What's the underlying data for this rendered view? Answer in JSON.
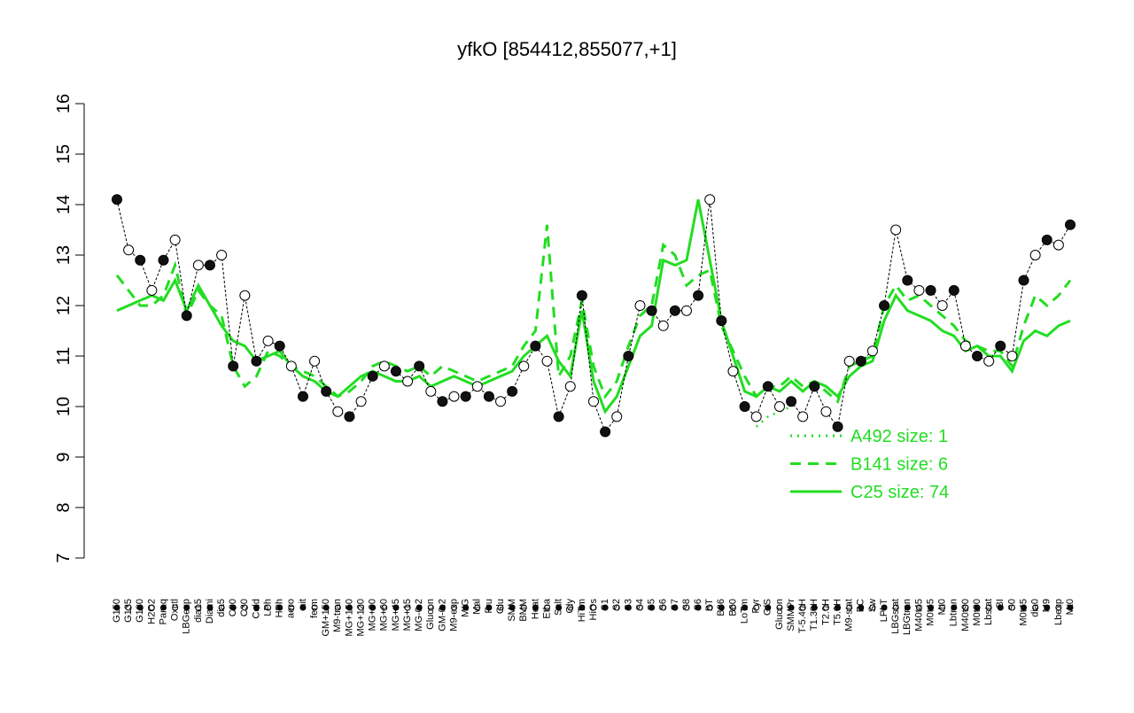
{
  "chart_data": {
    "type": "line",
    "title": "yfkO [854412,855077,+1]",
    "categories": [
      "G150",
      "G135",
      "G180",
      "H2O2",
      "Paraq",
      "Oxctl",
      "LBGexp",
      "dia15",
      "Diami",
      "dia5",
      "C90",
      "C30",
      "Cold",
      "LPh",
      "HPh",
      "aero",
      "nit",
      "ferm",
      "GM+150",
      "M9-tran",
      "MG+150",
      "MG+120",
      "MG+90",
      "MG+60",
      "MG+45",
      "MG+15",
      "MG-0.2",
      "Glucon",
      "GM-0.2",
      "M9-exp",
      "M/G",
      "Mal",
      "Fru",
      "Glu",
      "SMM",
      "BMM",
      "Heat",
      "Etha",
      "Salt",
      "Gly",
      "HiTm",
      "HiOs",
      "S1",
      "S2",
      "S3",
      "S4",
      "S5",
      "S6",
      "S7",
      "S8",
      "S6",
      "BT",
      "B36",
      "B60",
      "LoTm",
      "Pyr",
      "G/S",
      "Glucon",
      "SMMPr",
      "T-5.40H",
      "T1.30H",
      "T2.0H",
      "T5.0H",
      "M9-stat",
      "BC",
      "Sw",
      "LPhT",
      "LBGstat",
      "LBGtran",
      "M40t45",
      "M0t45",
      "Mt0",
      "Lbtran",
      "M40t90",
      "M0t90",
      "Lbstat",
      "BI",
      "S0",
      "M0t45",
      "dia0",
      "M9",
      "Lbexp",
      "Mt0"
    ],
    "values": [
      14.1,
      13.1,
      12.9,
      12.3,
      12.9,
      13.3,
      11.8,
      12.8,
      12.8,
      13.0,
      10.8,
      12.2,
      10.9,
      11.3,
      11.2,
      10.8,
      10.2,
      10.9,
      10.3,
      9.9,
      9.8,
      10.1,
      10.6,
      10.8,
      10.7,
      10.5,
      10.8,
      10.3,
      10.1,
      10.2,
      10.2,
      10.4,
      10.2,
      10.1,
      10.3,
      10.8,
      11.2,
      10.9,
      9.8,
      10.4,
      12.2,
      10.1,
      9.5,
      9.8,
      11.0,
      12.0,
      11.9,
      11.6,
      11.9,
      11.9,
      12.2,
      14.1,
      11.7,
      10.7,
      10.0,
      9.8,
      10.4,
      10.0,
      10.1,
      9.8,
      10.4,
      9.9,
      9.6,
      10.9,
      10.9,
      11.1,
      12.0,
      13.5,
      12.5,
      12.3,
      12.3,
      12.0,
      12.3,
      11.2,
      11.0,
      10.9,
      11.2,
      11.0,
      12.5,
      13.0,
      13.3,
      13.2,
      13.6
    ],
    "series": [
      {
        "name": "A492 size: 1",
        "color": "#22dd22",
        "style": "dotted",
        "values": [
          null,
          null,
          null,
          null,
          null,
          null,
          null,
          null,
          null,
          null,
          null,
          null,
          null,
          null,
          null,
          null,
          null,
          null,
          null,
          null,
          null,
          null,
          null,
          null,
          null,
          null,
          null,
          null,
          null,
          null,
          null,
          null,
          null,
          null,
          null,
          null,
          null,
          null,
          null,
          null,
          null,
          null,
          null,
          null,
          null,
          null,
          null,
          null,
          null,
          null,
          null,
          null,
          null,
          null,
          null,
          9.6,
          9.8,
          9.9,
          10.0,
          null,
          null,
          null,
          null,
          null,
          null,
          null,
          null,
          null,
          null,
          null,
          null,
          null,
          null,
          null,
          null,
          null,
          null,
          null,
          null,
          null,
          null,
          null,
          null
        ]
      },
      {
        "name": "B141 size: 6",
        "color": "#22dd22",
        "style": "dashed",
        "values": [
          12.6,
          12.3,
          12.0,
          12.0,
          12.2,
          12.8,
          11.8,
          12.3,
          12.0,
          11.8,
          10.8,
          10.4,
          10.6,
          11.1,
          11.0,
          10.8,
          10.7,
          10.6,
          10.4,
          10.2,
          10.3,
          10.5,
          10.8,
          10.9,
          10.8,
          10.7,
          10.8,
          10.6,
          10.8,
          10.7,
          10.6,
          10.5,
          10.6,
          10.7,
          10.8,
          11.2,
          11.5,
          13.6,
          10.6,
          11.0,
          12.1,
          10.8,
          10.2,
          10.5,
          11.2,
          11.8,
          12.0,
          13.2,
          13.0,
          12.4,
          12.6,
          12.7,
          11.6,
          11.1,
          10.6,
          10.2,
          10.4,
          10.4,
          10.6,
          10.4,
          10.5,
          10.3,
          10.1,
          10.8,
          10.9,
          11.0,
          12.0,
          12.4,
          12.1,
          12.2,
          12.0,
          11.8,
          11.6,
          11.3,
          11.2,
          11.1,
          11.1,
          10.8,
          11.6,
          12.2,
          12.0,
          12.2,
          12.5
        ]
      },
      {
        "name": "C25 size: 74",
        "color": "#22dd22",
        "style": "solid",
        "values": [
          11.9,
          12.0,
          12.1,
          12.2,
          12.1,
          12.5,
          11.9,
          12.4,
          12.0,
          11.6,
          11.3,
          11.2,
          10.9,
          11.0,
          11.1,
          10.8,
          10.6,
          10.5,
          10.3,
          10.2,
          10.4,
          10.6,
          10.7,
          10.6,
          10.5,
          10.5,
          10.6,
          10.4,
          10.5,
          10.6,
          10.5,
          10.4,
          10.5,
          10.6,
          10.7,
          11.0,
          11.2,
          11.4,
          10.9,
          10.6,
          11.9,
          10.5,
          9.9,
          10.2,
          10.8,
          11.4,
          11.6,
          12.9,
          12.8,
          12.9,
          14.1,
          12.9,
          11.7,
          11.0,
          10.3,
          10.2,
          10.4,
          10.3,
          10.5,
          10.3,
          10.5,
          10.4,
          10.2,
          10.6,
          10.8,
          10.9,
          11.7,
          12.2,
          11.9,
          11.8,
          11.7,
          11.5,
          11.4,
          11.1,
          11.2,
          11.0,
          11.0,
          10.7,
          11.3,
          11.5,
          11.4,
          11.6,
          11.7
        ]
      }
    ],
    "ylim": [
      7,
      16
    ],
    "yticks": [
      7,
      8,
      9,
      10,
      11,
      12,
      13,
      14,
      15,
      16
    ]
  }
}
